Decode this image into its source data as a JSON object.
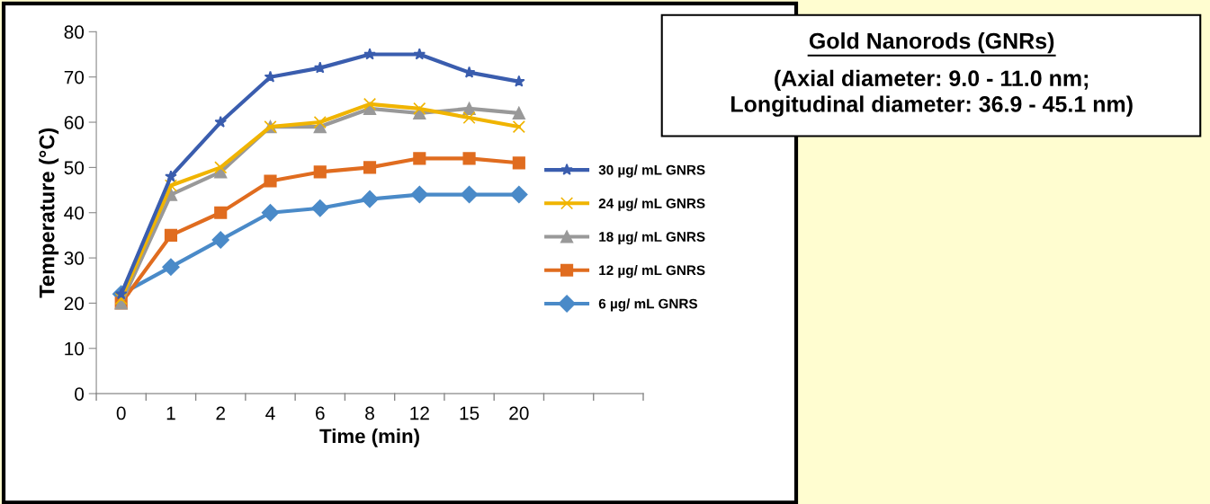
{
  "chart_data": {
    "type": "line",
    "title": "Gold Nanorods (GNRs)",
    "subtitle": "(Axial diameter: 9.0 - 11.0 nm;\nLongitudinal diameter: 36.9 - 45.1 nm)",
    "xlabel": "Time (min)",
    "ylabel": "Temperature (°C)",
    "categories": [
      "0",
      "1",
      "2",
      "4",
      "6",
      "8",
      "12",
      "15",
      "20",
      null,
      null
    ],
    "series": [
      {
        "name": "30 µg/ mL GNRS",
        "color": "#3a5dae",
        "marker": "star",
        "values": [
          22,
          48,
          60,
          70,
          72,
          75,
          75,
          71,
          69,
          null,
          null
        ]
      },
      {
        "name": "24 µg/ mL GNRS",
        "color": "#f0b400",
        "marker": "cross",
        "values": [
          21,
          46,
          50,
          59,
          60,
          64,
          63,
          61,
          59,
          null,
          null
        ]
      },
      {
        "name": "18 µg/ mL GNRS",
        "color": "#999999",
        "marker": "triangle",
        "values": [
          20,
          44,
          49,
          59,
          59,
          63,
          62,
          63,
          62,
          null,
          null
        ]
      },
      {
        "name": "12 µg/ mL GNRS",
        "color": "#e06c1f",
        "marker": "square",
        "values": [
          20,
          35,
          40,
          47,
          49,
          50,
          52,
          52,
          51,
          null,
          null
        ]
      },
      {
        "name": "6 µg/ mL GNRS",
        "color": "#4a8ac8",
        "marker": "diamond",
        "values": [
          22,
          28,
          34,
          40,
          41,
          43,
          44,
          44,
          44,
          null,
          null
        ]
      }
    ],
    "ylim": [
      0,
      80
    ],
    "yticks": [
      0,
      10,
      20,
      30,
      40,
      50,
      60,
      70,
      80
    ],
    "grid": false,
    "legend": "right",
    "line_style": "solid"
  }
}
